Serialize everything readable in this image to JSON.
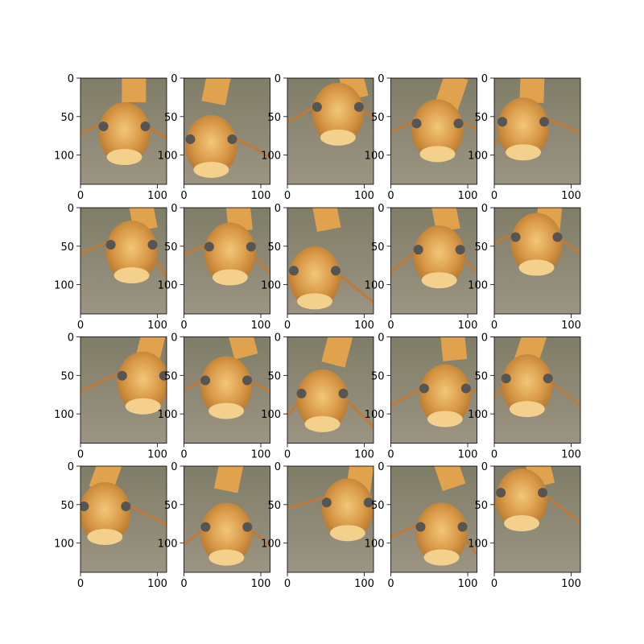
{
  "axes": {
    "xlim": [
      0,
      112
    ],
    "ylim": [
      0,
      138
    ],
    "y_inverted": true,
    "xticks": [
      0,
      100
    ],
    "yticks": [
      0,
      50,
      100
    ]
  },
  "grid": {
    "rows": 4,
    "columns": 5
  }
}
